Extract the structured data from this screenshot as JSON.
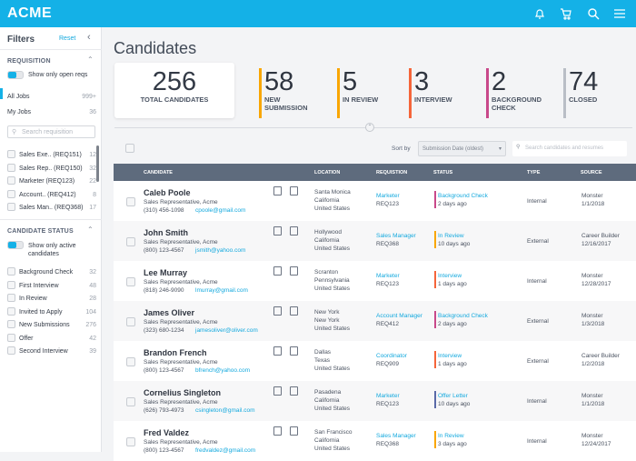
{
  "app": {
    "logo": "ACME",
    "icons": [
      "bell-icon",
      "cart-icon",
      "search-icon",
      "menu-icon"
    ]
  },
  "sidebar": {
    "title": "Filters",
    "reset": "Reset",
    "requisition": {
      "title": "REQUISITION",
      "toggle_label": "Show only open reqs",
      "jobs": [
        {
          "label": "All Jobs",
          "count": "999+",
          "active": true
        },
        {
          "label": "My Jobs",
          "count": "36"
        }
      ],
      "search_placeholder": "Search requisition",
      "items": [
        {
          "label": "Sales Exe.. (REQ151)",
          "count": "12"
        },
        {
          "label": "Sales Rep.. (REQ150)",
          "count": "32"
        },
        {
          "label": "Marketer (REQ123)",
          "count": "22"
        },
        {
          "label": "Account.. (REQ412)",
          "count": "8"
        },
        {
          "label": "Sales Man.. (REQ368)",
          "count": "17"
        }
      ]
    },
    "status": {
      "title": "CANDIDATE STATUS",
      "toggle_label": "Show only active candidates",
      "items": [
        {
          "label": "Background Check",
          "count": "32"
        },
        {
          "label": "First Interview",
          "count": "48"
        },
        {
          "label": "In Review",
          "count": "28"
        },
        {
          "label": "Invited to Apply",
          "count": "104"
        },
        {
          "label": "New Submissions",
          "count": "276"
        },
        {
          "label": "Offer",
          "count": "42"
        },
        {
          "label": "Second Interview",
          "count": "39"
        }
      ]
    }
  },
  "main": {
    "title": "Candidates",
    "total": {
      "value": "256",
      "label": "TOTAL CANDIDATES"
    },
    "stats": [
      {
        "value": "58",
        "label1": "NEW",
        "label2": "SUBMISSION",
        "color": "#f9a602"
      },
      {
        "value": "5",
        "label1": "IN REVIEW",
        "label2": "",
        "color": "#f9a602"
      },
      {
        "value": "3",
        "label1": "INTERVIEW",
        "label2": "",
        "color": "#f5653a"
      },
      {
        "value": "2",
        "label1": "BACKGROUND",
        "label2": "CHECK",
        "color": "#c8488a"
      },
      {
        "value": "74",
        "label1": "CLOSED",
        "label2": "",
        "color": "#b9bec6"
      }
    ],
    "sort_label": "Sort by",
    "sort_value": "Submission Date (oldest)",
    "search_placeholder": "Search candidates and resumes",
    "columns": [
      "CANDIDATE",
      "LOCATION",
      "REQUISTION",
      "STATUS",
      "TYPE",
      "SOURCE"
    ],
    "rows": [
      {
        "name": "Caleb Poole",
        "job": "Sales Representative, Acme",
        "phone": "(310) 456-1098",
        "email": "cpoole@gmail.com",
        "loc": [
          "Santa Monica",
          "California",
          "United States"
        ],
        "req": "Marketer",
        "req_id": "REQ123",
        "status": "Background Check",
        "ago": "2 days ago",
        "color": "#c8488a",
        "type": "Internal",
        "source": "Monster",
        "date": "1/1/2018"
      },
      {
        "name": "John Smith",
        "job": "Sales Representative, Acme",
        "phone": "(800) 123-4567",
        "email": "jsmith@yahoo.com",
        "loc": [
          "Hollywood",
          "California",
          "United States"
        ],
        "req": "Sales Manager",
        "req_id": "REQ368",
        "status": "In Review",
        "ago": "10 days ago",
        "color": "#f9a602",
        "type": "External",
        "source": "Career Builder",
        "date": "12/16/2017"
      },
      {
        "name": "Lee Murray",
        "job": "Sales Representative, Acme",
        "phone": "(818) 246-9090",
        "email": "lmurray@gmail.com",
        "loc": [
          "Scranton",
          "Pennsylvania",
          "United States"
        ],
        "req": "Marketer",
        "req_id": "REQ123",
        "status": "Interview",
        "ago": "1 days ago",
        "color": "#f5653a",
        "type": "Internal",
        "source": "Monster",
        "date": "12/28/2017"
      },
      {
        "name": "James Oliver",
        "job": "Sales Representative, Acme",
        "phone": "(323) 680-1234",
        "email": "jamesoliver@oliver.com",
        "loc": [
          "New York",
          "New York",
          "United States"
        ],
        "req": "Account Manager",
        "req_id": "REQ412",
        "status": "Background Check",
        "ago": "2 days ago",
        "color": "#c8488a",
        "type": "External",
        "source": "Monster",
        "date": "1/3/2018"
      },
      {
        "name": "Brandon French",
        "job": "Sales Representative, Acme",
        "phone": "(800) 123-4567",
        "email": "bfrench@yahoo.com",
        "loc": [
          "Dallas",
          "Texas",
          "United States"
        ],
        "req": "Coordinator",
        "req_id": "REQ909",
        "status": "Interview",
        "ago": "1 days ago",
        "color": "#f5653a",
        "type": "External",
        "source": "Career Builder",
        "date": "1/2/2018"
      },
      {
        "name": "Cornelius Singleton",
        "job": "Sales Representative, Acme",
        "phone": "(626) 793-4973",
        "email": "csingleton@gmail.com",
        "loc": [
          "Pasadena",
          "California",
          "United States"
        ],
        "req": "Marketer",
        "req_id": "REQ123",
        "status": "Offer Letter",
        "ago": "10 days ago",
        "color": "#5a6aa8",
        "type": "Internal",
        "source": "Monster",
        "date": "1/1/2018"
      },
      {
        "name": "Fred Valdez",
        "job": "Sales Representative, Acme",
        "phone": "(800) 123-4567",
        "email": "fredvaldez@gmail.com",
        "loc": [
          "San Francisco",
          "California",
          "United States"
        ],
        "req": "Sales Manager",
        "req_id": "REQ368",
        "status": "In Review",
        "ago": "3 days ago",
        "color": "#f9a602",
        "type": "Internal",
        "source": "Monster",
        "date": "12/24/2017"
      }
    ]
  }
}
